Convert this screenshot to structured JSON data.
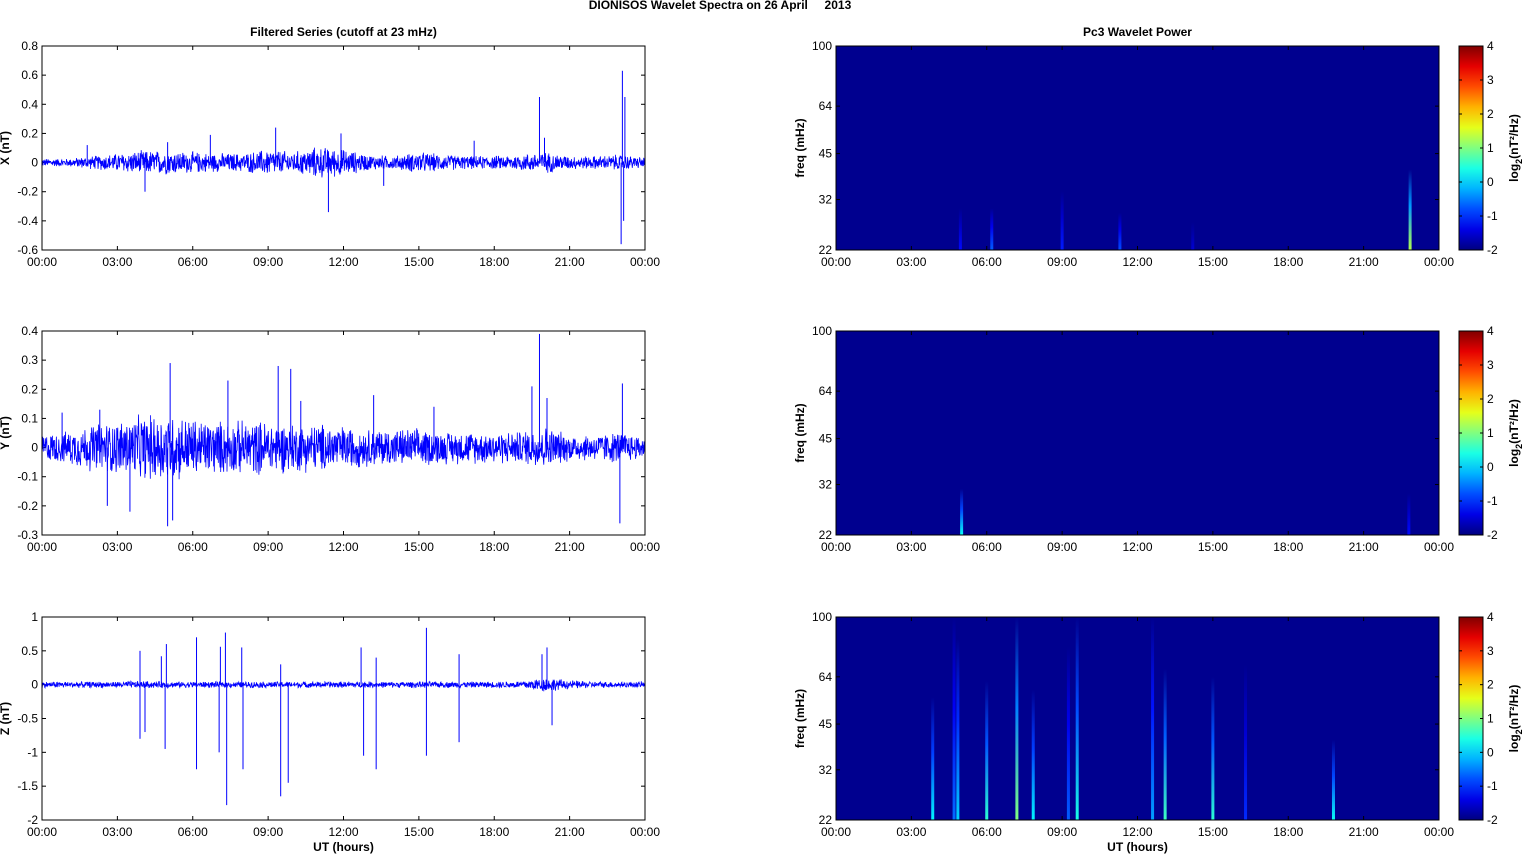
{
  "figure_title": "DIONISOS Wavelet Spectra on 26 April     2013",
  "colors": {
    "trace": "#0000ff",
    "background_blue": "#00008f",
    "colormap": [
      "#00008f",
      "#0000ff",
      "#00b4ff",
      "#2dffcf",
      "#b4ff4b",
      "#ffd700",
      "#ff4600",
      "#800000"
    ]
  },
  "chart_data": [
    {
      "type": "line",
      "panel": "filtered-x",
      "title": "Filtered Series (cutoff at 23 mHz)",
      "ylabel": "X (nT)",
      "xlabel": "",
      "xlim": [
        0,
        24
      ],
      "ylim": [
        -0.6,
        0.8
      ],
      "x_ticks": [
        "00:00",
        "03:00",
        "06:00",
        "09:00",
        "12:00",
        "15:00",
        "18:00",
        "21:00",
        "00:00"
      ],
      "y_ticks": [
        "0.8",
        "0.6",
        "0.4",
        "0.2",
        "0",
        "-0.2",
        "-0.4",
        "-0.6"
      ],
      "y_tick_values": [
        0.8,
        0.6,
        0.4,
        0.2,
        0,
        -0.2,
        -0.4,
        -0.6
      ],
      "envelope": {
        "x": [
          0,
          1,
          2,
          3,
          4,
          5,
          6,
          7,
          8,
          9,
          10,
          11,
          12,
          13,
          14,
          15,
          16,
          17,
          18,
          19,
          20,
          21,
          22,
          23,
          24
        ],
        "amplitude": [
          0.03,
          0.03,
          0.05,
          0.07,
          0.09,
          0.09,
          0.08,
          0.07,
          0.07,
          0.1,
          0.08,
          0.12,
          0.1,
          0.06,
          0.05,
          0.08,
          0.06,
          0.05,
          0.05,
          0.06,
          0.08,
          0.05,
          0.05,
          0.06,
          0.04
        ]
      },
      "spikes": [
        {
          "x": 1.8,
          "y": 0.12
        },
        {
          "x": 4.1,
          "y": -0.2
        },
        {
          "x": 5.0,
          "y": 0.14
        },
        {
          "x": 6.7,
          "y": 0.19
        },
        {
          "x": 9.3,
          "y": 0.24
        },
        {
          "x": 11.4,
          "y": -0.34
        },
        {
          "x": 11.9,
          "y": 0.2
        },
        {
          "x": 13.6,
          "y": -0.16
        },
        {
          "x": 17.2,
          "y": 0.15
        },
        {
          "x": 19.8,
          "y": 0.45
        },
        {
          "x": 20.0,
          "y": 0.17
        },
        {
          "x": 23.1,
          "y": 0.63
        },
        {
          "x": 23.05,
          "y": -0.56
        },
        {
          "x": 23.2,
          "y": 0.45
        },
        {
          "x": 23.15,
          "y": -0.4
        }
      ]
    },
    {
      "type": "heatmap",
      "panel": "wavelet-x",
      "title": "Pc3 Wavelet Power",
      "ylabel": "freq (mHz)",
      "xlabel": "",
      "xlim": [
        0,
        24
      ],
      "ylim": [
        22,
        100
      ],
      "y_scale": "log",
      "x_ticks": [
        "00:00",
        "03:00",
        "06:00",
        "09:00",
        "12:00",
        "15:00",
        "18:00",
        "21:00",
        "00:00"
      ],
      "y_ticks": [
        "100",
        "64",
        "45",
        "32",
        "22"
      ],
      "y_tick_values": [
        100,
        64,
        45,
        32,
        22
      ],
      "colorbar": {
        "label": "log2(nT²/Hz)",
        "range": [
          -2,
          4
        ],
        "ticks": [
          "4",
          "3",
          "2",
          "1",
          "0",
          "-1",
          "-2"
        ]
      },
      "features": [
        {
          "x": 4.95,
          "top_freq": 30,
          "peak_power": -1.2
        },
        {
          "x": 6.2,
          "top_freq": 30,
          "peak_power": -0.7
        },
        {
          "x": 9.0,
          "top_freq": 34,
          "peak_power": -1.1
        },
        {
          "x": 11.3,
          "top_freq": 29,
          "peak_power": -0.8
        },
        {
          "x": 14.2,
          "top_freq": 27,
          "peak_power": -1.5
        },
        {
          "x": 22.85,
          "top_freq": 40,
          "peak_power": 1.3
        }
      ]
    },
    {
      "type": "line",
      "panel": "filtered-y",
      "title": "",
      "ylabel": "Y (nT)",
      "xlabel": "",
      "xlim": [
        0,
        24
      ],
      "ylim": [
        -0.3,
        0.4
      ],
      "x_ticks": [
        "00:00",
        "03:00",
        "06:00",
        "09:00",
        "12:00",
        "15:00",
        "18:00",
        "21:00",
        "00:00"
      ],
      "y_ticks": [
        "0.4",
        "0.3",
        "0.2",
        "0.1",
        "0",
        "-0.1",
        "-0.2",
        "-0.3"
      ],
      "y_tick_values": [
        0.4,
        0.3,
        0.2,
        0.1,
        0,
        -0.1,
        -0.2,
        -0.3
      ],
      "envelope": {
        "x": [
          0,
          1,
          2,
          3,
          4,
          5,
          6,
          7,
          8,
          9,
          10,
          11,
          12,
          13,
          14,
          15,
          16,
          17,
          18,
          19,
          20,
          21,
          22,
          23,
          24
        ],
        "amplitude": [
          0.05,
          0.06,
          0.09,
          0.1,
          0.12,
          0.13,
          0.11,
          0.1,
          0.1,
          0.1,
          0.09,
          0.09,
          0.08,
          0.07,
          0.07,
          0.07,
          0.06,
          0.06,
          0.06,
          0.06,
          0.08,
          0.05,
          0.05,
          0.06,
          0.04
        ]
      },
      "spikes": [
        {
          "x": 0.8,
          "y": 0.12
        },
        {
          "x": 2.3,
          "y": 0.13
        },
        {
          "x": 2.6,
          "y": -0.2
        },
        {
          "x": 3.5,
          "y": -0.22
        },
        {
          "x": 5.1,
          "y": 0.29
        },
        {
          "x": 5.0,
          "y": -0.27
        },
        {
          "x": 5.2,
          "y": -0.25
        },
        {
          "x": 7.4,
          "y": 0.23
        },
        {
          "x": 9.4,
          "y": 0.28
        },
        {
          "x": 9.9,
          "y": 0.27
        },
        {
          "x": 10.3,
          "y": 0.16
        },
        {
          "x": 13.2,
          "y": 0.18
        },
        {
          "x": 15.6,
          "y": 0.14
        },
        {
          "x": 19.5,
          "y": 0.21
        },
        {
          "x": 19.8,
          "y": 0.39
        },
        {
          "x": 20.1,
          "y": 0.17
        },
        {
          "x": 23.1,
          "y": 0.22
        },
        {
          "x": 23.0,
          "y": -0.26
        }
      ]
    },
    {
      "type": "heatmap",
      "panel": "wavelet-y",
      "title": "",
      "ylabel": "freq (mHz)",
      "xlabel": "",
      "xlim": [
        0,
        24
      ],
      "ylim": [
        22,
        100
      ],
      "y_scale": "log",
      "x_ticks": [
        "00:00",
        "03:00",
        "06:00",
        "09:00",
        "12:00",
        "15:00",
        "18:00",
        "21:00",
        "00:00"
      ],
      "y_ticks": [
        "100",
        "64",
        "45",
        "32",
        "22"
      ],
      "y_tick_values": [
        100,
        64,
        45,
        32,
        22
      ],
      "colorbar": {
        "label": "log2(nT²/Hz)",
        "range": [
          -2,
          4
        ],
        "ticks": [
          "4",
          "3",
          "2",
          "1",
          "0",
          "-1",
          "-2"
        ]
      },
      "features": [
        {
          "x": 5.0,
          "top_freq": 31,
          "peak_power": 0.3
        },
        {
          "x": 22.8,
          "top_freq": 30,
          "peak_power": -1.2
        }
      ]
    },
    {
      "type": "line",
      "panel": "filtered-z",
      "title": "",
      "ylabel": "Z (nT)",
      "xlabel": "UT (hours)",
      "xlim": [
        0,
        24
      ],
      "ylim": [
        -2,
        1
      ],
      "x_ticks": [
        "00:00",
        "03:00",
        "06:00",
        "09:00",
        "12:00",
        "15:00",
        "18:00",
        "21:00",
        "00:00"
      ],
      "y_ticks": [
        "1",
        "0.5",
        "0",
        "-0.5",
        "-1",
        "-1.5",
        "-2"
      ],
      "y_tick_values": [
        1,
        0.5,
        0,
        -0.5,
        -1,
        -1.5,
        -2
      ],
      "envelope": {
        "x": [
          0,
          1,
          2,
          3,
          4,
          5,
          6,
          7,
          8,
          9,
          10,
          11,
          12,
          13,
          14,
          15,
          16,
          17,
          18,
          19,
          20,
          21,
          22,
          23,
          24
        ],
        "amplitude": [
          0.05,
          0.05,
          0.05,
          0.05,
          0.06,
          0.05,
          0.05,
          0.05,
          0.05,
          0.05,
          0.05,
          0.05,
          0.05,
          0.05,
          0.05,
          0.05,
          0.05,
          0.05,
          0.05,
          0.06,
          0.12,
          0.07,
          0.05,
          0.05,
          0.05
        ]
      },
      "spikes": [
        {
          "x": 3.9,
          "y": 0.5
        },
        {
          "x": 3.9,
          "y": -0.8
        },
        {
          "x": 4.1,
          "y": -0.7
        },
        {
          "x": 4.75,
          "y": 0.42
        },
        {
          "x": 4.9,
          "y": -0.95
        },
        {
          "x": 4.95,
          "y": 0.6
        },
        {
          "x": 6.15,
          "y": 0.7
        },
        {
          "x": 6.15,
          "y": -1.25
        },
        {
          "x": 7.1,
          "y": 0.56
        },
        {
          "x": 7.05,
          "y": -1.0
        },
        {
          "x": 7.3,
          "y": 0.77
        },
        {
          "x": 7.35,
          "y": -1.78
        },
        {
          "x": 7.95,
          "y": 0.55
        },
        {
          "x": 8.0,
          "y": -1.25
        },
        {
          "x": 9.5,
          "y": 0.3
        },
        {
          "x": 9.5,
          "y": -1.65
        },
        {
          "x": 9.8,
          "y": -1.45
        },
        {
          "x": 12.7,
          "y": 0.55
        },
        {
          "x": 12.8,
          "y": -1.05
        },
        {
          "x": 13.3,
          "y": 0.4
        },
        {
          "x": 13.3,
          "y": -1.25
        },
        {
          "x": 15.3,
          "y": 0.84
        },
        {
          "x": 15.3,
          "y": -1.05
        },
        {
          "x": 16.6,
          "y": 0.45
        },
        {
          "x": 16.6,
          "y": -0.85
        },
        {
          "x": 19.9,
          "y": 0.45
        },
        {
          "x": 20.1,
          "y": 0.55
        },
        {
          "x": 20.3,
          "y": -0.6
        }
      ]
    },
    {
      "type": "heatmap",
      "panel": "wavelet-z",
      "title": "",
      "ylabel": "freq (mHz)",
      "xlabel": "UT (hours)",
      "xlim": [
        0,
        24
      ],
      "ylim": [
        22,
        100
      ],
      "y_scale": "log",
      "x_ticks": [
        "00:00",
        "03:00",
        "06:00",
        "09:00",
        "12:00",
        "15:00",
        "18:00",
        "21:00",
        "00:00"
      ],
      "y_ticks": [
        "100",
        "64",
        "45",
        "32",
        "22"
      ],
      "y_tick_values": [
        100,
        64,
        45,
        32,
        22
      ],
      "colorbar": {
        "label": "log2(nT²/Hz)",
        "range": [
          -2,
          4
        ],
        "ticks": [
          "4",
          "3",
          "2",
          "1",
          "0",
          "-1",
          "-2"
        ]
      },
      "features": [
        {
          "x": 3.85,
          "top_freq": 55,
          "peak_power": 0.2
        },
        {
          "x": 4.7,
          "top_freq": 100,
          "peak_power": -0.6
        },
        {
          "x": 4.85,
          "top_freq": 85,
          "peak_power": 0.0
        },
        {
          "x": 6.0,
          "top_freq": 62,
          "peak_power": 0.5
        },
        {
          "x": 7.2,
          "top_freq": 100,
          "peak_power": 1.0
        },
        {
          "x": 7.85,
          "top_freq": 58,
          "peak_power": 0.2
        },
        {
          "x": 9.25,
          "top_freq": 80,
          "peak_power": -0.7
        },
        {
          "x": 9.6,
          "top_freq": 100,
          "peak_power": 0.4
        },
        {
          "x": 12.6,
          "top_freq": 100,
          "peak_power": -0.3
        },
        {
          "x": 13.1,
          "top_freq": 68,
          "peak_power": 0.6
        },
        {
          "x": 15.0,
          "top_freq": 64,
          "peak_power": 0.5
        },
        {
          "x": 16.3,
          "top_freq": 70,
          "peak_power": -1.0
        },
        {
          "x": 19.8,
          "top_freq": 40,
          "peak_power": 0.3
        }
      ]
    }
  ]
}
